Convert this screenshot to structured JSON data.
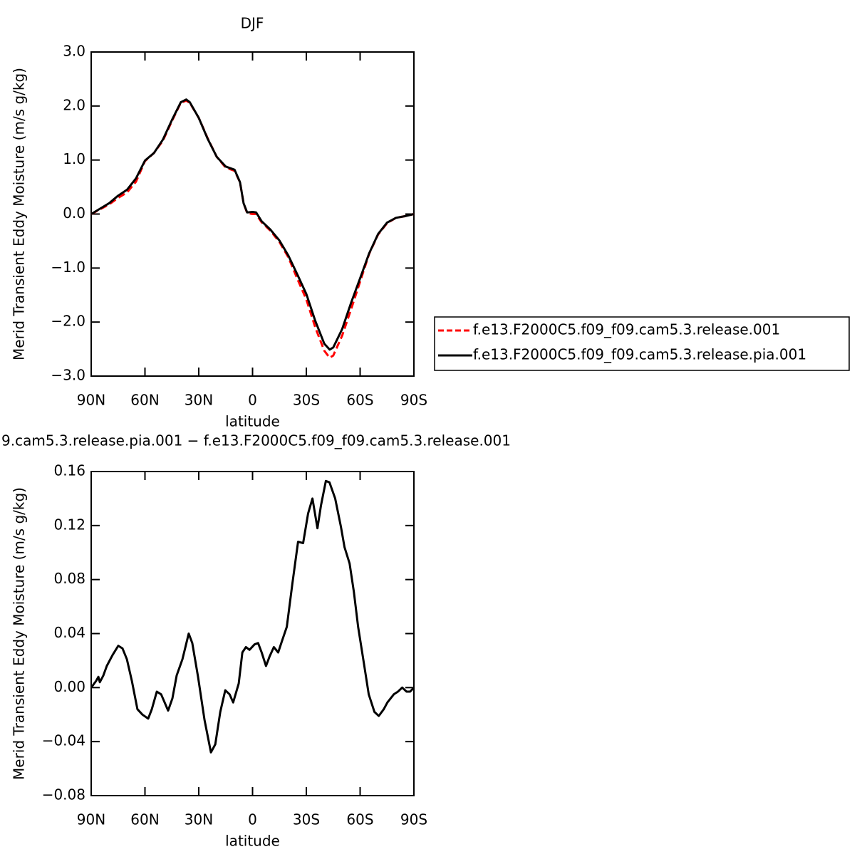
{
  "chart_data": [
    {
      "type": "line",
      "title": "DJF",
      "xlabel": "latitude",
      "ylabel": "Merid Transient Eddy Moisture (m/s g/kg)",
      "x": [
        90,
        85,
        80,
        75,
        70,
        65,
        60,
        55,
        50,
        45,
        40,
        37,
        35,
        30,
        25,
        20,
        15,
        10,
        7,
        5,
        3,
        0,
        -2,
        -5,
        -10,
        -15,
        -20,
        -25,
        -30,
        -35,
        -40,
        -43,
        -45,
        -50,
        -55,
        -60,
        -65,
        -70,
        -75,
        -80,
        -85,
        -90
      ],
      "series": [
        {
          "name": "f.e13.F2000C5.f09_f09.cam5.3.release.001",
          "color": "#ff0000",
          "line_style": "dashed",
          "values": [
            0,
            0.09,
            0.18,
            0.3,
            0.4,
            0.6,
            0.98,
            1.13,
            1.36,
            1.72,
            2.06,
            2.1,
            2.06,
            1.78,
            1.4,
            1.06,
            0.86,
            0.8,
            0.59,
            0.2,
            0.02,
            0.0,
            0.0,
            -0.15,
            -0.31,
            -0.52,
            -0.8,
            -1.2,
            -1.58,
            -2.1,
            -2.53,
            -2.66,
            -2.62,
            -2.25,
            -1.76,
            -1.25,
            -0.74,
            -0.38,
            -0.17,
            -0.07,
            -0.04,
            0
          ]
        },
        {
          "name": "f.e13.F2000C5.f09_f09.cam5.3.release.pia.001",
          "color": "#000000",
          "line_style": "solid",
          "values": [
            0,
            0.1,
            0.2,
            0.34,
            0.45,
            0.66,
            0.99,
            1.13,
            1.38,
            1.74,
            2.07,
            2.12,
            2.07,
            1.78,
            1.39,
            1.06,
            0.88,
            0.82,
            0.59,
            0.2,
            0.03,
            0.04,
            0.03,
            -0.13,
            -0.29,
            -0.49,
            -0.77,
            -1.12,
            -1.48,
            -1.98,
            -2.4,
            -2.51,
            -2.47,
            -2.13,
            -1.64,
            -1.19,
            -0.73,
            -0.37,
            -0.16,
            -0.07,
            -0.04,
            0
          ]
        }
      ],
      "xlim": [
        90,
        -90
      ],
      "xticks": [
        {
          "value": 90,
          "label": "90N"
        },
        {
          "value": 60,
          "label": "60N"
        },
        {
          "value": 30,
          "label": "30N"
        },
        0,
        {
          "value": -30,
          "label": "30S"
        },
        {
          "value": -60,
          "label": "60S"
        },
        {
          "value": -90,
          "label": "90S"
        }
      ],
      "ylim": [
        -3,
        3
      ],
      "yticks": [
        {
          "value": 3,
          "label": "3.0"
        },
        {
          "value": 2,
          "label": "2.0"
        },
        {
          "value": 1,
          "label": "1.0"
        },
        {
          "value": 0,
          "label": "0.0"
        },
        {
          "value": -1,
          "label": "−1.0"
        },
        {
          "value": -2,
          "label": "−2.0"
        },
        {
          "value": -3,
          "label": "−3.0"
        }
      ],
      "legend": "right"
    },
    {
      "type": "line",
      "title": "9.cam5.3.release.pia.001  −  f.e13.F2000C5.f09_f09.cam5.3.release.001",
      "xlabel": "latitude",
      "ylabel": "Merid Transient Eddy Moisture (m/s g/kg)",
      "x": [
        90,
        87.2,
        86.0,
        85.2,
        83.2,
        81.3,
        78.1,
        74.9,
        72.5,
        70.1,
        67.3,
        64.2,
        61.4,
        58.2,
        56.2,
        53.4,
        51.0,
        47.1,
        44.7,
        42.3,
        39.1,
        35.6,
        33.6,
        30.4,
        26.8,
        23.2,
        20.8,
        18.0,
        15.2,
        12.8,
        10.8,
        7.7,
        5.7,
        3.7,
        1.7,
        -1.1,
        -3.1,
        -5.1,
        -7.5,
        -9.5,
        -11.9,
        -14.3,
        -16.3,
        -19.1,
        -22.2,
        -25.4,
        -28.2,
        -31.0,
        -33.4,
        -36.2,
        -38.2,
        -40.9,
        -42.9,
        -46.1,
        -49.3,
        -51.3,
        -54.1,
        -56.5,
        -58.9,
        -62.1,
        -64.8,
        -68.0,
        -70.4,
        -73.2,
        -75.2,
        -78.8,
        -81.1,
        -83.5,
        -85.9,
        -87.9,
        -90
      ],
      "series": [
        {
          "color": "#000000",
          "line_style": "solid",
          "values": [
            0,
            0.005,
            0.008,
            0.004,
            0.009,
            0.016,
            0.024,
            0.031,
            0.029,
            0.021,
            0.005,
            -0.016,
            -0.02,
            -0.023,
            -0.016,
            -0.003,
            -0.005,
            -0.017,
            -0.008,
            0.009,
            0.021,
            0.04,
            0.033,
            0.008,
            -0.024,
            -0.048,
            -0.042,
            -0.018,
            -0.002,
            -0.005,
            -0.011,
            0.003,
            0.026,
            0.03,
            0.028,
            0.032,
            0.033,
            0.026,
            0.016,
            0.023,
            0.03,
            0.026,
            0.034,
            0.045,
            0.077,
            0.108,
            0.107,
            0.129,
            0.14,
            0.118,
            0.135,
            0.153,
            0.152,
            0.14,
            0.119,
            0.104,
            0.092,
            0.071,
            0.045,
            0.018,
            -0.005,
            -0.018,
            -0.021,
            -0.016,
            -0.011,
            -0.005,
            -0.003,
            0,
            -0.003,
            -0.003,
            0
          ]
        }
      ],
      "xlim": [
        90,
        -90
      ],
      "xticks": [
        {
          "value": 90,
          "label": "90N"
        },
        {
          "value": 60,
          "label": "60N"
        },
        {
          "value": 30,
          "label": "30N"
        },
        0,
        {
          "value": -30,
          "label": "30S"
        },
        {
          "value": -60,
          "label": "60S"
        },
        {
          "value": -90,
          "label": "90S"
        }
      ],
      "ylim": [
        -0.08,
        0.16
      ],
      "yticks": [
        0.16,
        0.12,
        0.08,
        0.04,
        {
          "value": 0,
          "label": "0.00"
        },
        {
          "value": -0.04,
          "label": "−0.04"
        },
        {
          "value": -0.08,
          "label": "−0.08"
        }
      ]
    }
  ]
}
